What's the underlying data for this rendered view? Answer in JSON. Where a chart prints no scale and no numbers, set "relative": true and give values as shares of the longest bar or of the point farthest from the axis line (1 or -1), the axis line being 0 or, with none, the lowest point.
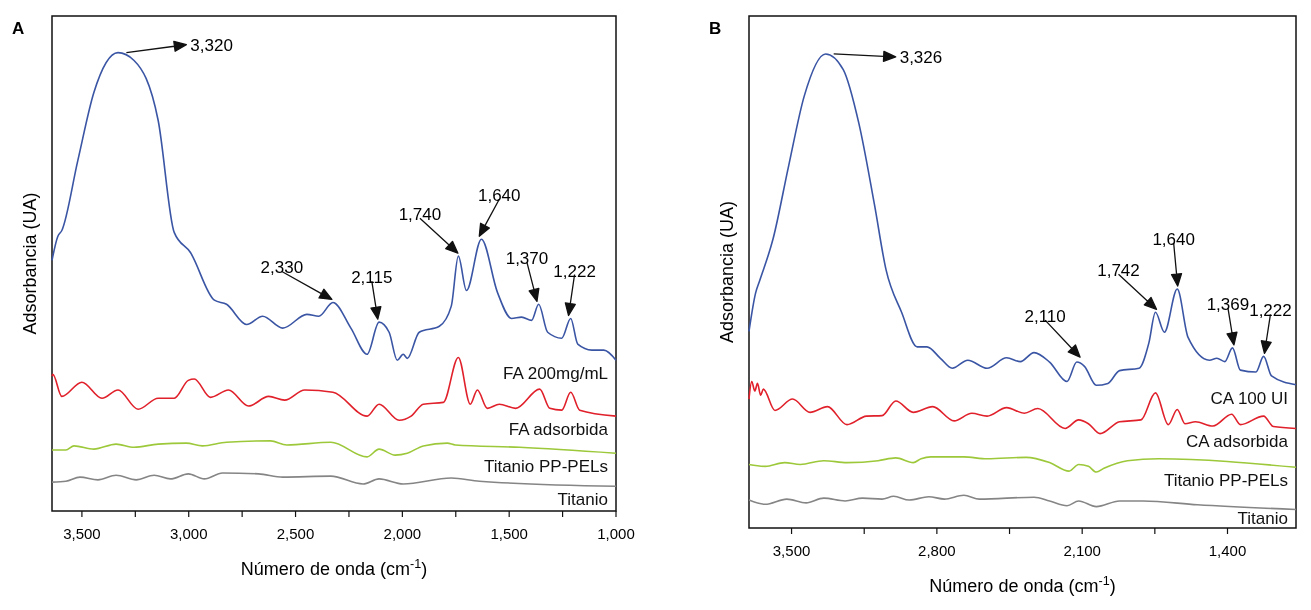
{
  "chart_data": [
    {
      "type": "line",
      "title": "A",
      "xlabel": "Número de onda (cm$^{-1}$)",
      "ylabel": "Adsorbancia (UA)",
      "relative": true,
      "xlim": [
        3640,
        1000
      ],
      "xticks": [
        {
          "value": 3500,
          "label": "3,500"
        },
        {
          "value": 3250,
          "label": null
        },
        {
          "value": 3000,
          "label": "3,000"
        },
        {
          "value": 2750,
          "label": null
        },
        {
          "value": 2500,
          "label": "2,500"
        },
        {
          "value": 2250,
          "label": null
        },
        {
          "value": 2000,
          "label": "2,000"
        },
        {
          "value": 1750,
          "label": null
        },
        {
          "value": 1500,
          "label": "1,500"
        },
        {
          "value": 1250,
          "label": null
        },
        {
          "value": 1000,
          "label": "1,000"
        }
      ],
      "series": [
        {
          "name": "FA 200mg/mL",
          "color": "#3a55a4",
          "x": [
            3640,
            3613,
            3594,
            3519,
            3444,
            3331,
            3256,
            3143,
            3068,
            2992,
            2880,
            2823,
            2729,
            2654,
            2560,
            2447,
            2391,
            2325,
            2241,
            2165,
            2109,
            2062,
            2024,
            1996,
            1977,
            1921,
            1827,
            1771,
            1738,
            1700,
            1630,
            1555,
            1489,
            1442,
            1395,
            1362,
            1320,
            1254,
            1212,
            1179,
            1113,
            1057,
            1000
          ],
          "values": [
            0.547,
            0.599,
            0.612,
            0.765,
            0.913,
            1.0,
            0.983,
            0.852,
            0.608,
            0.564,
            0.46,
            0.451,
            0.407,
            0.425,
            0.399,
            0.429,
            0.425,
            0.455,
            0.399,
            0.342,
            0.412,
            0.39,
            0.329,
            0.342,
            0.333,
            0.39,
            0.403,
            0.447,
            0.556,
            0.481,
            0.593,
            0.477,
            0.42,
            0.423,
            0.416,
            0.451,
            0.39,
            0.377,
            0.42,
            0.364,
            0.351,
            0.351,
            0.329
          ]
        },
        {
          "name": "FA adsorbida",
          "color": "#e0202a",
          "x": [
            3640,
            3636,
            3594,
            3500,
            3406,
            3331,
            3237,
            3143,
            3068,
            3002,
            2974,
            2898,
            2814,
            2720,
            2626,
            2551,
            2457,
            2325,
            2165,
            2109,
            2015,
            1959,
            1902,
            1808,
            1738,
            1682,
            1649,
            1602,
            1546,
            1470,
            1357,
            1310,
            1254,
            1212,
            1170,
            1000
          ],
          "values": [
            0.294,
            0.298,
            0.25,
            0.281,
            0.246,
            0.264,
            0.222,
            0.246,
            0.246,
            0.285,
            0.288,
            0.248,
            0.264,
            0.229,
            0.25,
            0.242,
            0.264,
            0.259,
            0.207,
            0.233,
            0.198,
            0.207,
            0.233,
            0.237,
            0.335,
            0.233,
            0.264,
            0.224,
            0.233,
            0.224,
            0.266,
            0.224,
            0.22,
            0.259,
            0.22,
            0.207
          ]
        },
        {
          "name": "Titanio PP-PELs",
          "color": "#9cc83a",
          "x": [
            3640,
            3575,
            3537,
            3444,
            3340,
            3256,
            3143,
            3011,
            2936,
            2823,
            2617,
            2541,
            2335,
            2165,
            2109,
            2034,
            1977,
            1902,
            1790,
            1752,
            1451,
            1000
          ],
          "values": [
            0.133,
            0.133,
            0.142,
            0.135,
            0.146,
            0.139,
            0.146,
            0.148,
            0.142,
            0.15,
            0.153,
            0.144,
            0.15,
            0.118,
            0.135,
            0.122,
            0.126,
            0.142,
            0.148,
            0.144,
            0.139,
            0.126
          ]
        },
        {
          "name": "Titanio",
          "color": "#858585",
          "x": [
            3640,
            3575,
            3509,
            3425,
            3340,
            3246,
            3162,
            3086,
            3002,
            2927,
            2842,
            2673,
            2560,
            2335,
            2184,
            2109,
            1996,
            1771,
            1639,
            1000
          ],
          "values": [
            0.063,
            0.065,
            0.074,
            0.068,
            0.078,
            0.068,
            0.078,
            0.07,
            0.081,
            0.07,
            0.083,
            0.081,
            0.074,
            0.076,
            0.059,
            0.07,
            0.059,
            0.072,
            0.065,
            0.054
          ]
        }
      ],
      "annotations": [
        {
          "text": "3,320",
          "x": 3320,
          "y": 1.0
        },
        {
          "text": "2,330",
          "x": 2330,
          "y": 0.455
        },
        {
          "text": "2,115",
          "x": 2115,
          "y": 0.412
        },
        {
          "text": "1,740",
          "x": 1740,
          "y": 0.556
        },
        {
          "text": "1,640",
          "x": 1640,
          "y": 0.593
        },
        {
          "text": "1,370",
          "x": 1370,
          "y": 0.451
        },
        {
          "text": "1,222",
          "x": 1222,
          "y": 0.42
        }
      ]
    },
    {
      "type": "line",
      "title": "B",
      "xlabel": "Número de onda (cm$^{-1}$)",
      "ylabel": "Adsorbancia (UA)",
      "relative": true,
      "xlim": [
        3705,
        1070
      ],
      "xticks": [
        {
          "value": 3500,
          "label": "3,500"
        },
        {
          "value": 3150,
          "label": null
        },
        {
          "value": 2800,
          "label": "2,800"
        },
        {
          "value": 2450,
          "label": null
        },
        {
          "value": 2100,
          "label": "2,100"
        },
        {
          "value": 1750,
          "label": null
        },
        {
          "value": 1400,
          "label": "1,400"
        }
      ],
      "series": [
        {
          "name": "CA 100 UI",
          "color": "#3a55a4",
          "x": [
            3705,
            3673,
            3655,
            3589,
            3514,
            3439,
            3336,
            3251,
            3176,
            3101,
            3045,
            2970,
            2895,
            2848,
            2783,
            2726,
            2651,
            2558,
            2464,
            2398,
            2332,
            2257,
            2173,
            2126,
            2089,
            2032,
            1976,
            1920,
            1826,
            1779,
            1747,
            1704,
            1642,
            1590,
            1487,
            1451,
            1413,
            1376,
            1338,
            1263,
            1226,
            1188,
            1070
          ],
          "values": [
            0.415,
            0.496,
            0.52,
            0.61,
            0.764,
            0.911,
            1.0,
            0.967,
            0.854,
            0.683,
            0.545,
            0.455,
            0.382,
            0.382,
            0.358,
            0.337,
            0.354,
            0.337,
            0.359,
            0.351,
            0.37,
            0.35,
            0.309,
            0.35,
            0.341,
            0.301,
            0.305,
            0.332,
            0.337,
            0.39,
            0.455,
            0.413,
            0.504,
            0.402,
            0.354,
            0.358,
            0.351,
            0.38,
            0.333,
            0.329,
            0.362,
            0.321,
            0.302
          ]
        },
        {
          "name": "CA adsorbida",
          "color": "#e0202a",
          "x": [
            3705,
            3692,
            3677,
            3664,
            3649,
            3636,
            3580,
            3495,
            3411,
            3327,
            3233,
            3139,
            3064,
            2998,
            2914,
            2820,
            2717,
            2632,
            2558,
            2464,
            2379,
            2314,
            2182,
            2117,
            2070,
            2014,
            1920,
            1817,
            1747,
            1685,
            1642,
            1605,
            1554,
            1470,
            1380,
            1338,
            1226,
            1179,
            1070
          ],
          "values": [
            0.272,
            0.309,
            0.289,
            0.305,
            0.28,
            0.293,
            0.248,
            0.272,
            0.244,
            0.256,
            0.218,
            0.236,
            0.237,
            0.268,
            0.244,
            0.256,
            0.226,
            0.242,
            0.236,
            0.254,
            0.242,
            0.252,
            0.21,
            0.228,
            0.22,
            0.199,
            0.224,
            0.228,
            0.285,
            0.218,
            0.25,
            0.22,
            0.224,
            0.215,
            0.24,
            0.218,
            0.236,
            0.214,
            0.21
          ]
        },
        {
          "name": "Titanio PP-PELs",
          "color": "#9cc83a",
          "x": [
            3705,
            3627,
            3533,
            3458,
            3345,
            3233,
            3083,
            2998,
            2914,
            2876,
            2829,
            2670,
            2558,
            2370,
            2257,
            2163,
            2117,
            2070,
            2032,
            1995,
            1882,
            1732,
            1070
          ],
          "values": [
            0.134,
            0.13,
            0.138,
            0.134,
            0.142,
            0.138,
            0.142,
            0.148,
            0.138,
            0.146,
            0.15,
            0.15,
            0.146,
            0.149,
            0.138,
            0.12,
            0.134,
            0.13,
            0.118,
            0.126,
            0.142,
            0.146,
            0.128
          ]
        },
        {
          "name": "Titanio",
          "color": "#858585",
          "x": [
            3705,
            3627,
            3523,
            3430,
            3345,
            3242,
            3158,
            3064,
            3008,
            2933,
            2839,
            2764,
            2670,
            2595,
            2332,
            2257,
            2173,
            2117,
            2032,
            1920,
            1807,
            1545,
            1070
          ],
          "values": [
            0.059,
            0.05,
            0.061,
            0.053,
            0.063,
            0.057,
            0.063,
            0.061,
            0.067,
            0.059,
            0.066,
            0.061,
            0.069,
            0.061,
            0.065,
            0.057,
            0.047,
            0.057,
            0.045,
            0.057,
            0.057,
            0.049,
            0.039
          ]
        }
      ],
      "annotations": [
        {
          "text": "3,326",
          "x": 3326,
          "y": 1.0
        },
        {
          "text": "2,110",
          "x": 2110,
          "y": 0.354
        },
        {
          "text": "1,742",
          "x": 1742,
          "y": 0.455
        },
        {
          "text": "1,640",
          "x": 1640,
          "y": 0.504
        },
        {
          "text": "1,369",
          "x": 1369,
          "y": 0.38
        },
        {
          "text": "1,222",
          "x": 1222,
          "y": 0.362
        }
      ]
    }
  ]
}
